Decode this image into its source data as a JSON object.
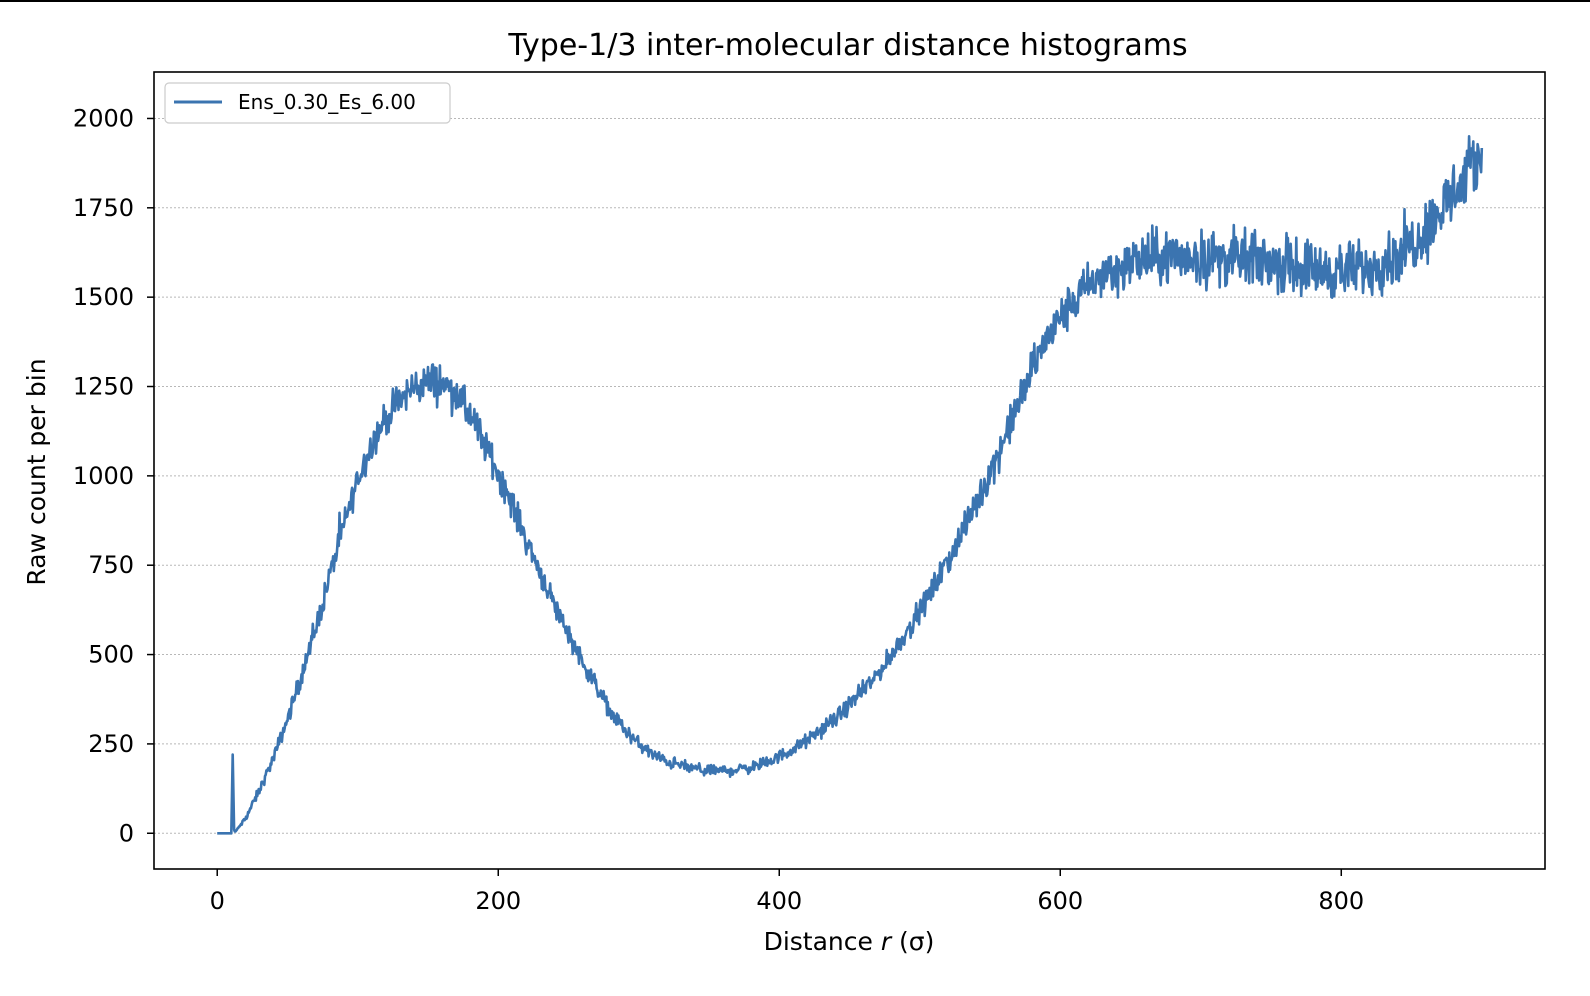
{
  "chart_data": {
    "type": "line",
    "title": "Type-1/3 inter-molecular distance histograms",
    "xlabel": "Distance r (σ)",
    "xlabel_parts": {
      "prefix": "Distance ",
      "var": "r",
      "suffix": " (σ)"
    },
    "ylabel": "Raw count per bin",
    "xlim": [
      -45,
      945
    ],
    "ylim": [
      -100,
      2130
    ],
    "xticks": [
      0,
      200,
      400,
      600,
      800
    ],
    "yticks": [
      0,
      250,
      500,
      750,
      1000,
      1250,
      1500,
      1750,
      2000
    ],
    "grid": "horizontal dotted",
    "legend_position": "top-left",
    "colors": {
      "series": "#3b74b0"
    },
    "series": [
      {
        "name": "Ens_0.30_Es_6.00",
        "x": [
          0,
          10,
          11,
          12,
          12.5,
          13,
          20,
          30,
          40,
          50,
          60,
          70,
          80,
          90,
          100,
          110,
          120,
          130,
          140,
          150,
          160,
          170,
          180,
          190,
          200,
          210,
          220,
          230,
          240,
          250,
          260,
          270,
          280,
          290,
          300,
          310,
          320,
          330,
          340,
          350,
          360,
          370,
          380,
          390,
          400,
          410,
          420,
          430,
          440,
          450,
          460,
          470,
          480,
          490,
          500,
          510,
          520,
          530,
          540,
          550,
          560,
          570,
          580,
          590,
          600,
          610,
          620,
          630,
          640,
          650,
          660,
          670,
          680,
          690,
          700,
          710,
          720,
          730,
          740,
          750,
          760,
          770,
          780,
          790,
          800,
          810,
          820,
          830,
          840,
          850,
          860,
          870,
          880,
          890,
          900
        ],
        "y": [
          0,
          0,
          220,
          10,
          5,
          5,
          40,
          120,
          210,
          320,
          440,
          570,
          720,
          860,
          990,
          1090,
          1160,
          1210,
          1250,
          1265,
          1260,
          1230,
          1170,
          1090,
          1010,
          920,
          820,
          730,
          640,
          560,
          480,
          410,
          340,
          290,
          250,
          220,
          200,
          190,
          180,
          175,
          175,
          178,
          185,
          195,
          215,
          235,
          260,
          290,
          320,
          360,
          400,
          445,
          500,
          560,
          620,
          690,
          760,
          840,
          920,
          1010,
          1100,
          1200,
          1300,
          1380,
          1440,
          1490,
          1530,
          1560,
          1580,
          1595,
          1605,
          1610,
          1612,
          1612,
          1610,
          1610,
          1608,
          1605,
          1600,
          1598,
          1592,
          1585,
          1580,
          1575,
          1572,
          1575,
          1585,
          1600,
          1620,
          1650,
          1690,
          1740,
          1790,
          1840,
          1900
        ],
        "noise": [
          0,
          0,
          0,
          0,
          0,
          0,
          6,
          10,
          12,
          16,
          20,
          24,
          26,
          28,
          30,
          32,
          34,
          36,
          38,
          40,
          40,
          38,
          36,
          34,
          32,
          30,
          28,
          26,
          24,
          22,
          20,
          18,
          16,
          15,
          14,
          13,
          12,
          12,
          12,
          12,
          12,
          12,
          12,
          12,
          12,
          13,
          14,
          15,
          16,
          17,
          18,
          19,
          20,
          22,
          24,
          26,
          28,
          30,
          32,
          34,
          36,
          38,
          40,
          42,
          44,
          46,
          48,
          50,
          52,
          54,
          56,
          58,
          58,
          58,
          58,
          58,
          58,
          58,
          58,
          58,
          58,
          58,
          58,
          58,
          58,
          58,
          58,
          58,
          60,
          62,
          64,
          66,
          68,
          70,
          72
        ]
      }
    ]
  }
}
